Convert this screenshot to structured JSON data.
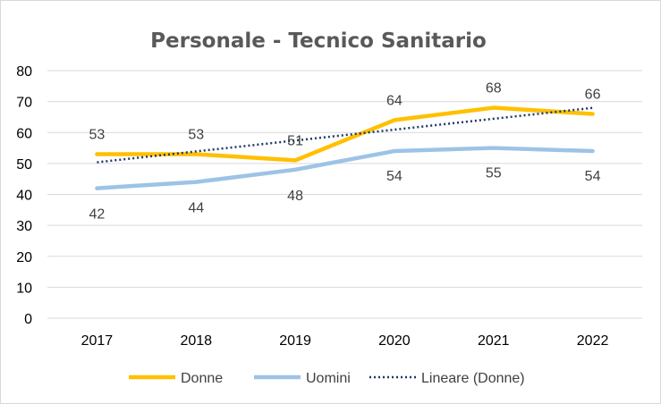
{
  "chart_data": {
    "type": "line",
    "title": "Personale - Tecnico Sanitario",
    "categories": [
      "2017",
      "2018",
      "2019",
      "2020",
      "2021",
      "2022"
    ],
    "ylim": [
      0,
      80
    ],
    "yticks": [
      0,
      10,
      20,
      30,
      40,
      50,
      60,
      70,
      80
    ],
    "grid": true,
    "legend_position": "bottom",
    "series": [
      {
        "name": "Donne",
        "values": [
          53,
          53,
          51,
          64,
          68,
          66
        ],
        "color": "#ffc000",
        "style": "solid"
      },
      {
        "name": "Uomini",
        "values": [
          42,
          44,
          48,
          54,
          55,
          54
        ],
        "color": "#9dc3e6",
        "style": "solid"
      }
    ],
    "trendline": {
      "name": "Lineare (Donne)",
      "of": "Donne",
      "type": "linear",
      "color": "#1f3864",
      "style": "dotted"
    }
  }
}
